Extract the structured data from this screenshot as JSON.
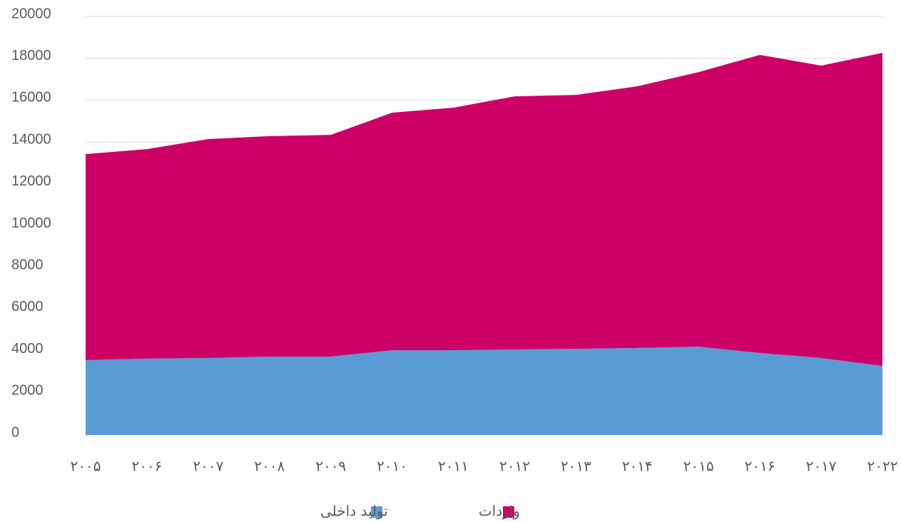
{
  "chart_data": {
    "type": "stacked_area",
    "categories": [
      "۲۰۰۵",
      "۲۰۰۶",
      "۲۰۰۷",
      "۲۰۰۸",
      "۲۰۰۹",
      "۲۰۱۰",
      "۲۰۱۱",
      "۲۰۱۲",
      "۲۰۱۳",
      "۲۰۱۴",
      "۲۰۱۵",
      "۲۰۱۶",
      "۲۰۱۷",
      "۲۰۲۲"
    ],
    "series": [
      {
        "name": "تولید داخلی",
        "color": "#5b9bd5",
        "values": [
          3580,
          3650,
          3680,
          3750,
          3750,
          4050,
          4050,
          4090,
          4120,
          4160,
          4220,
          3920,
          3680,
          3300
        ]
      },
      {
        "name": "واردات",
        "color": "#cc0066",
        "values": [
          9840,
          10010,
          10460,
          10530,
          10590,
          11350,
          11590,
          12090,
          12130,
          12500,
          13120,
          14240,
          13970,
          14960
        ]
      }
    ],
    "ylim": [
      0,
      20000
    ],
    "yticks": [
      0,
      2000,
      4000,
      6000,
      8000,
      10000,
      12000,
      14000,
      16000,
      18000,
      20000
    ],
    "grid": true,
    "legend": "bottom"
  }
}
